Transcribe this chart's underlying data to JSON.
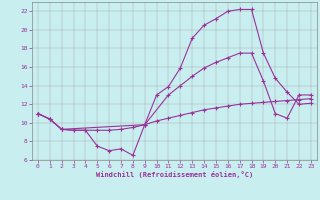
{
  "bg_color": "#c8eef0",
  "line_color": "#993399",
  "xlim": [
    -0.5,
    23.5
  ],
  "ylim": [
    6,
    23
  ],
  "yticks": [
    6,
    8,
    10,
    12,
    14,
    16,
    18,
    20,
    22
  ],
  "xticks": [
    0,
    1,
    2,
    3,
    4,
    5,
    6,
    7,
    8,
    9,
    10,
    11,
    12,
    13,
    14,
    15,
    16,
    17,
    18,
    19,
    20,
    21,
    22,
    23
  ],
  "xlabel": "Windchill (Refroidissement éolien,°C)",
  "line1_x": [
    0,
    1,
    2,
    3,
    4,
    5,
    6,
    7,
    8,
    9,
    10,
    11,
    12,
    13,
    14,
    15,
    16,
    17,
    18,
    19,
    20,
    21,
    22,
    23
  ],
  "line1_y": [
    11.0,
    10.4,
    9.3,
    9.2,
    9.2,
    7.5,
    7.0,
    7.2,
    6.5,
    9.8,
    13.0,
    13.9,
    15.9,
    19.1,
    20.5,
    21.2,
    22.0,
    22.2,
    22.2,
    17.5,
    14.8,
    13.3,
    12.0,
    12.1
  ],
  "line2_x": [
    0,
    1,
    2,
    3,
    4,
    5,
    6,
    7,
    8,
    9,
    10,
    11,
    12,
    13,
    14,
    15,
    16,
    17,
    18,
    19,
    20,
    21,
    22,
    23
  ],
  "line2_y": [
    11.0,
    10.4,
    9.3,
    9.2,
    9.2,
    9.2,
    9.2,
    9.3,
    9.5,
    9.8,
    10.2,
    10.5,
    10.8,
    11.1,
    11.4,
    11.6,
    11.8,
    12.0,
    12.1,
    12.2,
    12.3,
    12.4,
    12.5,
    12.6
  ],
  "line3_x": [
    0,
    1,
    2,
    9,
    11,
    12,
    13,
    14,
    15,
    16,
    17,
    18,
    19,
    20,
    21,
    22,
    23
  ],
  "line3_y": [
    11.0,
    10.4,
    9.3,
    9.8,
    13.0,
    14.0,
    15.0,
    15.9,
    16.5,
    17.0,
    17.5,
    17.5,
    14.5,
    11.0,
    10.5,
    13.0,
    13.0
  ]
}
